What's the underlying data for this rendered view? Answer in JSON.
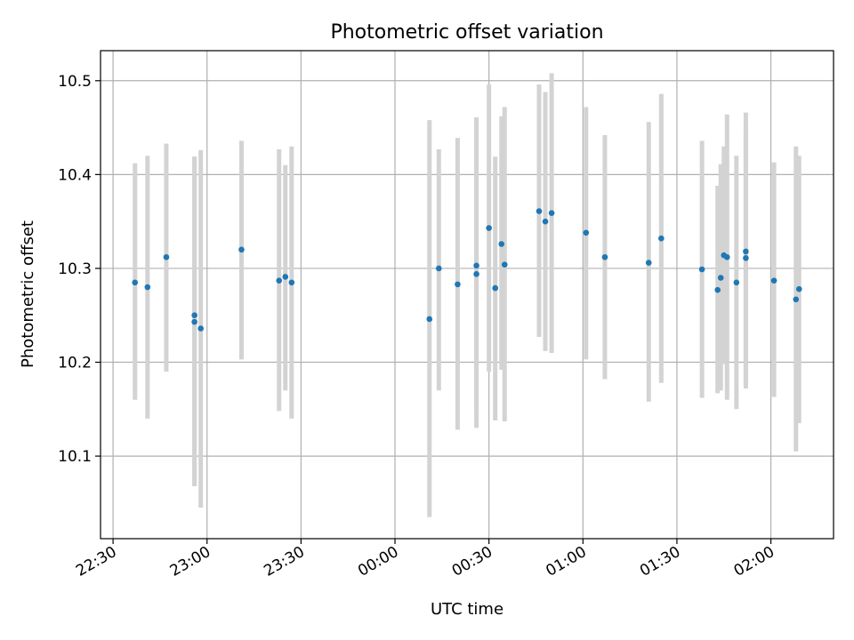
{
  "chart_data": {
    "type": "scatter",
    "title": "Photometric offset variation",
    "xlabel": "UTC time",
    "ylabel": "Photometric offset",
    "x_tick_labels": [
      "22:30",
      "23:00",
      "23:30",
      "00:00",
      "00:30",
      "01:00",
      "01:30",
      "02:00"
    ],
    "y_tick_labels": [
      "10.1",
      "10.2",
      "10.3",
      "10.4",
      "10.5"
    ],
    "y_ticks": [
      10.1,
      10.2,
      10.3,
      10.4,
      10.5
    ],
    "ylim": [
      10.012,
      10.532
    ],
    "xlim": [
      "22:26",
      "02:20"
    ],
    "grid": true,
    "colors": {
      "points": "#1f77b4",
      "errorbars": "#d3d3d3",
      "grid": "#b0b0b0"
    },
    "points": [
      {
        "x": "22:37",
        "y": 10.285,
        "lo": 10.16,
        "hi": 10.412
      },
      {
        "x": "22:41",
        "y": 10.28,
        "lo": 10.14,
        "hi": 10.42
      },
      {
        "x": "22:47",
        "y": 10.312,
        "lo": 10.19,
        "hi": 10.433
      },
      {
        "x": "22:56",
        "y": 10.25,
        "lo": 10.068,
        "hi": 10.419
      },
      {
        "x": "22:56",
        "y": 10.243,
        "lo": 10.068,
        "hi": 10.419
      },
      {
        "x": "22:58",
        "y": 10.236,
        "lo": 10.045,
        "hi": 10.426
      },
      {
        "x": "23:11",
        "y": 10.32,
        "lo": 10.203,
        "hi": 10.436
      },
      {
        "x": "23:23",
        "y": 10.287,
        "lo": 10.148,
        "hi": 10.427
      },
      {
        "x": "23:25",
        "y": 10.291,
        "lo": 10.17,
        "hi": 10.41
      },
      {
        "x": "23:27",
        "y": 10.285,
        "lo": 10.14,
        "hi": 10.43
      },
      {
        "x": "00:11",
        "y": 10.246,
        "lo": 10.035,
        "hi": 10.458
      },
      {
        "x": "00:14",
        "y": 10.3,
        "lo": 10.17,
        "hi": 10.427
      },
      {
        "x": "00:20",
        "y": 10.283,
        "lo": 10.128,
        "hi": 10.439
      },
      {
        "x": "00:26",
        "y": 10.294,
        "lo": 10.13,
        "hi": 10.461
      },
      {
        "x": "00:26",
        "y": 10.303,
        "lo": 10.145,
        "hi": 10.461
      },
      {
        "x": "00:30",
        "y": 10.343,
        "lo": 10.19,
        "hi": 10.496
      },
      {
        "x": "00:32",
        "y": 10.279,
        "lo": 10.138,
        "hi": 10.419
      },
      {
        "x": "00:34",
        "y": 10.326,
        "lo": 10.192,
        "hi": 10.462
      },
      {
        "x": "00:35",
        "y": 10.304,
        "lo": 10.137,
        "hi": 10.472
      },
      {
        "x": "00:46",
        "y": 10.361,
        "lo": 10.227,
        "hi": 10.496
      },
      {
        "x": "00:48",
        "y": 10.35,
        "lo": 10.212,
        "hi": 10.488
      },
      {
        "x": "00:50",
        "y": 10.359,
        "lo": 10.21,
        "hi": 10.508
      },
      {
        "x": "01:01",
        "y": 10.338,
        "lo": 10.203,
        "hi": 10.472
      },
      {
        "x": "01:07",
        "y": 10.312,
        "lo": 10.182,
        "hi": 10.442
      },
      {
        "x": "01:21",
        "y": 10.306,
        "lo": 10.158,
        "hi": 10.456
      },
      {
        "x": "01:25",
        "y": 10.332,
        "lo": 10.178,
        "hi": 10.486
      },
      {
        "x": "01:38",
        "y": 10.299,
        "lo": 10.162,
        "hi": 10.436
      },
      {
        "x": "01:43",
        "y": 10.277,
        "lo": 10.167,
        "hi": 10.388
      },
      {
        "x": "01:44",
        "y": 10.29,
        "lo": 10.17,
        "hi": 10.411
      },
      {
        "x": "01:45",
        "y": 10.314,
        "lo": 10.198,
        "hi": 10.43
      },
      {
        "x": "01:46",
        "y": 10.312,
        "lo": 10.16,
        "hi": 10.464
      },
      {
        "x": "01:49",
        "y": 10.285,
        "lo": 10.15,
        "hi": 10.42
      },
      {
        "x": "01:52",
        "y": 10.318,
        "lo": 10.172,
        "hi": 10.466
      },
      {
        "x": "01:52",
        "y": 10.311,
        "lo": 10.176,
        "hi": 10.446
      },
      {
        "x": "02:01",
        "y": 10.287,
        "lo": 10.163,
        "hi": 10.413
      },
      {
        "x": "02:08",
        "y": 10.267,
        "lo": 10.105,
        "hi": 10.43
      },
      {
        "x": "02:09",
        "y": 10.278,
        "lo": 10.135,
        "hi": 10.42
      }
    ]
  }
}
